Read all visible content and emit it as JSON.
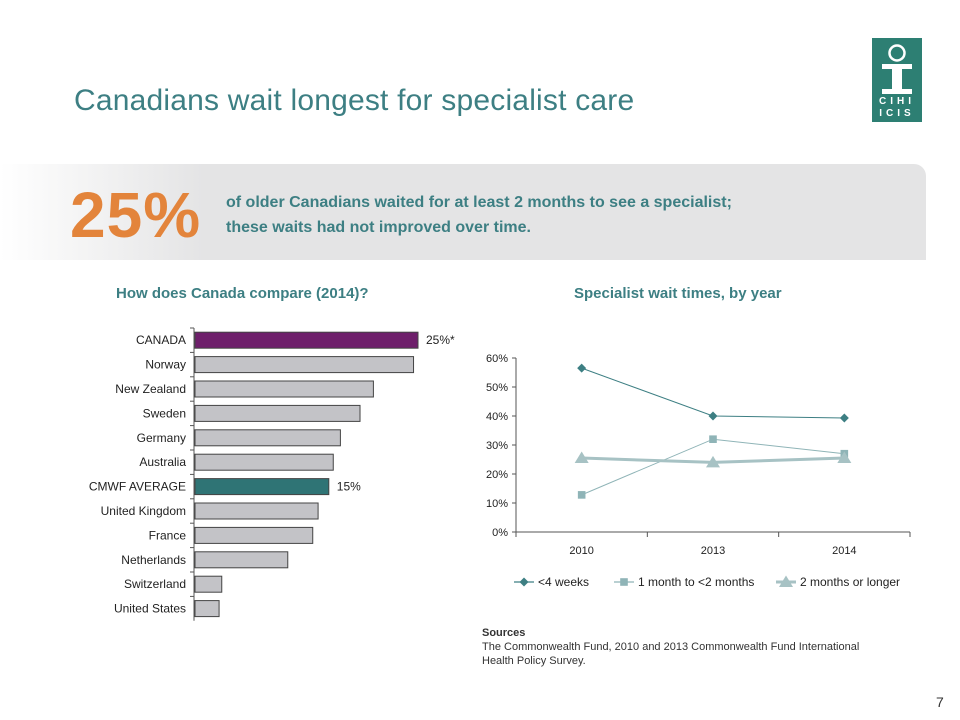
{
  "slide": {
    "title": "Canadians wait longest for specialist care",
    "highlight_value": "25%",
    "highlight_text_line1": "of older Canadians waited for at least 2 months to see a specialist;",
    "highlight_text_line2": "these waits had not improved over time.",
    "page_number": "7",
    "sources_heading": "Sources",
    "sources_line1": "The Commonwealth Fund, 2010 and 2013 Commonwealth Fund International",
    "sources_line2": "Health Policy Survey."
  },
  "logo": {
    "line1": "CIHI",
    "line2": "ICIS"
  },
  "colors": {
    "title": "#3d7f83",
    "highlight": "#e3843b",
    "bar_default": "#c3c3c7",
    "bar_canada": "#6e1f6b",
    "bar_average": "#2f7475",
    "line_color": "#3d7f83",
    "line_mid": "#8fb4b7",
    "line_light": "#a7c2c4"
  },
  "chart_data": [
    {
      "type": "bar",
      "orientation": "horizontal",
      "title": "How does Canada compare (2014)?",
      "categories": [
        "CANADA",
        "Norway",
        "New Zealand",
        "Sweden",
        "Germany",
        "Australia",
        "CMWF AVERAGE",
        "United Kingdom",
        "France",
        "Netherlands",
        "Switzerland",
        "United States"
      ],
      "values": [
        25,
        24.5,
        20,
        18.5,
        16.3,
        15.5,
        15,
        13.8,
        13.2,
        10.4,
        3,
        2.7
      ],
      "data_labels": [
        "25%*",
        "",
        "",
        "",
        "",
        "",
        "15%",
        "",
        "",
        "",
        "",
        ""
      ],
      "xlim": [
        0,
        27
      ]
    },
    {
      "type": "line",
      "title": "Specialist wait times, by year",
      "categories": [
        "2010",
        "2013",
        "2014"
      ],
      "yticks": [
        "0%",
        "10%",
        "20%",
        "30%",
        "40%",
        "50%",
        "60%"
      ],
      "ylim": [
        0,
        60
      ],
      "legend_position": "bottom",
      "series": [
        {
          "name": "<4 weeks",
          "values": [
            56.5,
            40,
            39.3
          ],
          "marker": "diamond"
        },
        {
          "name": "1 month to <2 months",
          "values": [
            12.8,
            32,
            27
          ],
          "marker": "square"
        },
        {
          "name": "2 months or longer",
          "values": [
            25.5,
            24,
            25.5
          ],
          "marker": "triangle"
        }
      ]
    }
  ]
}
